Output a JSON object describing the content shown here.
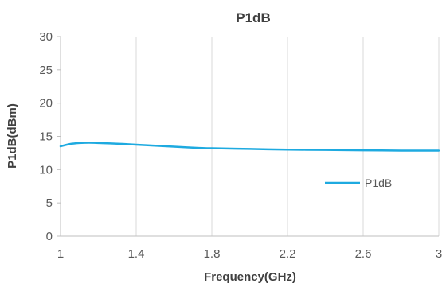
{
  "chart_data": {
    "type": "line",
    "title": "P1dB",
    "xlabel": "Frequency(GHz)",
    "ylabel": "P1dB(dBm)",
    "xlim": [
      1,
      3
    ],
    "ylim": [
      0,
      30
    ],
    "x_ticks": [
      "1",
      "1.4",
      "1.8",
      "2.2",
      "2.6",
      "3"
    ],
    "y_ticks": [
      "0",
      "5",
      "10",
      "15",
      "20",
      "25",
      "30"
    ],
    "grid": "vertical",
    "legend_position": "right",
    "series": [
      {
        "name": "P1dB",
        "color": "#1EAAE0",
        "x": [
          1.0,
          1.05,
          1.1,
          1.15,
          1.2,
          1.3,
          1.4,
          1.5,
          1.6,
          1.7,
          1.8,
          2.0,
          2.2,
          2.4,
          2.6,
          2.8,
          3.0
        ],
        "y": [
          13.5,
          13.85,
          14.0,
          14.05,
          14.0,
          13.9,
          13.75,
          13.6,
          13.45,
          13.3,
          13.2,
          13.1,
          13.0,
          12.95,
          12.9,
          12.85,
          12.85
        ]
      }
    ]
  }
}
